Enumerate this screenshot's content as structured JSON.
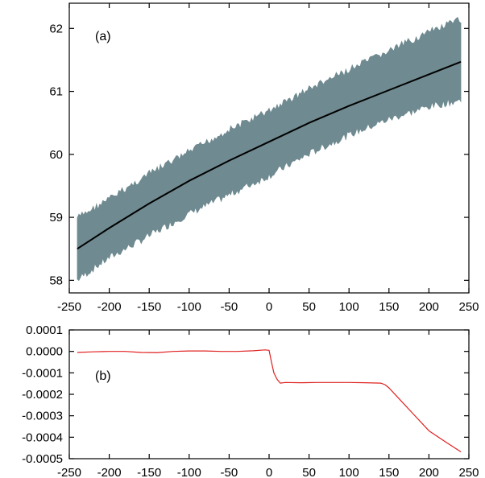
{
  "chart_data": [
    {
      "type": "area",
      "panel_label": "(a)",
      "xlim": [
        -250,
        250
      ],
      "ylim": [
        57.8,
        62.4
      ],
      "x_ticks": [
        -250,
        -200,
        -150,
        -100,
        -50,
        0,
        50,
        100,
        150,
        200,
        250
      ],
      "x_tick_labels": [
        "-250",
        "-200",
        "-150",
        "-100",
        "-50",
        "0",
        "50",
        "100",
        "150",
        "200",
        "250"
      ],
      "y_ticks": [
        58,
        59,
        60,
        61,
        62
      ],
      "y_tick_labels": [
        "58",
        "59",
        "60",
        "61",
        "62"
      ],
      "grid": false,
      "series": [
        {
          "kind": "band",
          "color": "#6f8a90",
          "x": [
            -240,
            -200,
            -150,
            -100,
            -50,
            0,
            50,
            100,
            150,
            200,
            240
          ],
          "lower": [
            57.95,
            58.3,
            58.65,
            59.0,
            59.3,
            59.6,
            59.95,
            60.25,
            60.5,
            60.7,
            60.8
          ],
          "upper": [
            59.05,
            59.35,
            59.75,
            60.1,
            60.45,
            60.75,
            61.1,
            61.4,
            61.7,
            62.0,
            62.2
          ]
        },
        {
          "kind": "line",
          "color": "#000000",
          "x": [
            -240,
            -200,
            -150,
            -100,
            -50,
            0,
            50,
            100,
            150,
            200,
            240
          ],
          "y": [
            58.5,
            58.83,
            59.22,
            59.58,
            59.9,
            60.2,
            60.5,
            60.77,
            61.02,
            61.27,
            61.47
          ]
        }
      ]
    },
    {
      "type": "line",
      "panel_label": "(b)",
      "xlim": [
        -250,
        250
      ],
      "ylim": [
        -0.0005,
        0.0001
      ],
      "x_ticks": [
        -250,
        -200,
        -150,
        -100,
        -50,
        0,
        50,
        100,
        150,
        200,
        250
      ],
      "x_tick_labels": [
        "-250",
        "-200",
        "-150",
        "-100",
        "-50",
        "0",
        "50",
        "100",
        "150",
        "200",
        "250"
      ],
      "y_ticks": [
        0.0001,
        0.0,
        -0.0001,
        -0.0002,
        -0.0003,
        -0.0004,
        -0.0005
      ],
      "y_tick_labels": [
        "0.0001",
        "0.0000",
        "-0.0001",
        "-0.0002",
        "-0.0003",
        "-0.0004",
        "-0.0005"
      ],
      "grid": false,
      "series": [
        {
          "kind": "line",
          "color": "#e02020",
          "x": [
            -240,
            -220,
            -200,
            -180,
            -160,
            -140,
            -120,
            -100,
            -80,
            -60,
            -40,
            -20,
            -5,
            0,
            3,
            6,
            10,
            14,
            20,
            40,
            60,
            80,
            100,
            120,
            140,
            145,
            150,
            160,
            180,
            200,
            220,
            240
          ],
          "y": [
            -5e-06,
            -2e-06,
            0.0,
            0.0,
            -5e-06,
            -6e-06,
            0.0,
            2e-06,
            2e-06,
            0.0,
            0.0,
            3e-06,
            7e-06,
            5e-06,
            -5e-05,
            -0.0001,
            -0.00013,
            -0.000148,
            -0.000145,
            -0.000146,
            -0.000145,
            -0.000145,
            -0.000145,
            -0.000146,
            -0.000148,
            -0.000155,
            -0.00017,
            -0.00021,
            -0.00029,
            -0.00037,
            -0.00042,
            -0.000468
          ]
        }
      ]
    }
  ]
}
